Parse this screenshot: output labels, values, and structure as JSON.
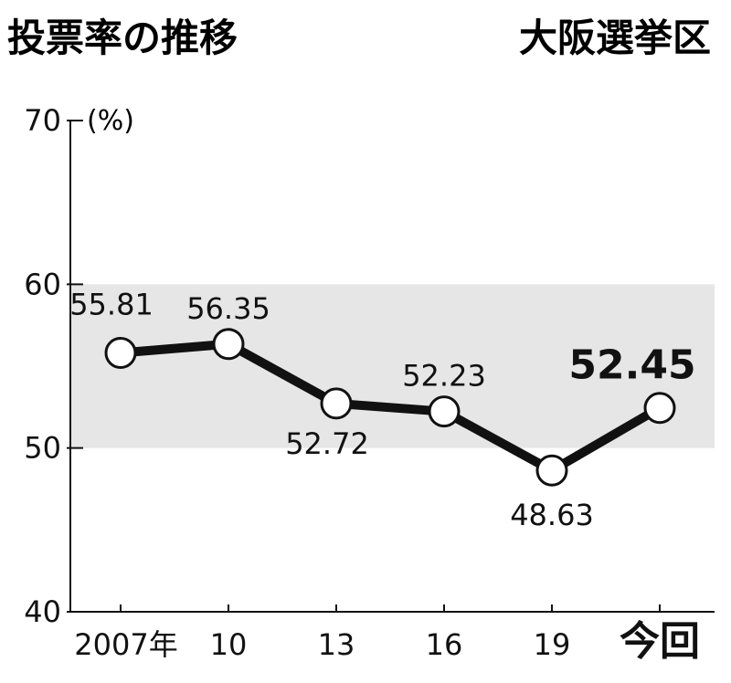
{
  "chart_data": {
    "type": "line",
    "title": "投票率の推移",
    "subtitle": "大阪選挙区",
    "unit_label": "(%)",
    "x_labels": [
      "2007年",
      "10",
      "13",
      "16",
      "19",
      "今回"
    ],
    "values": [
      55.81,
      56.35,
      52.72,
      52.23,
      48.63,
      52.45
    ],
    "value_labels": [
      "55.81",
      "56.35",
      "52.72",
      "52.23",
      "48.63",
      "52.45"
    ],
    "highlight_index": 5,
    "ylim": [
      40,
      70
    ],
    "yticks": [
      "40",
      "50",
      "60",
      "70"
    ],
    "band": [
      50,
      60
    ],
    "colors": {
      "band": "#e6e6e6",
      "line": "#111111",
      "marker_fill": "#ffffff"
    }
  }
}
